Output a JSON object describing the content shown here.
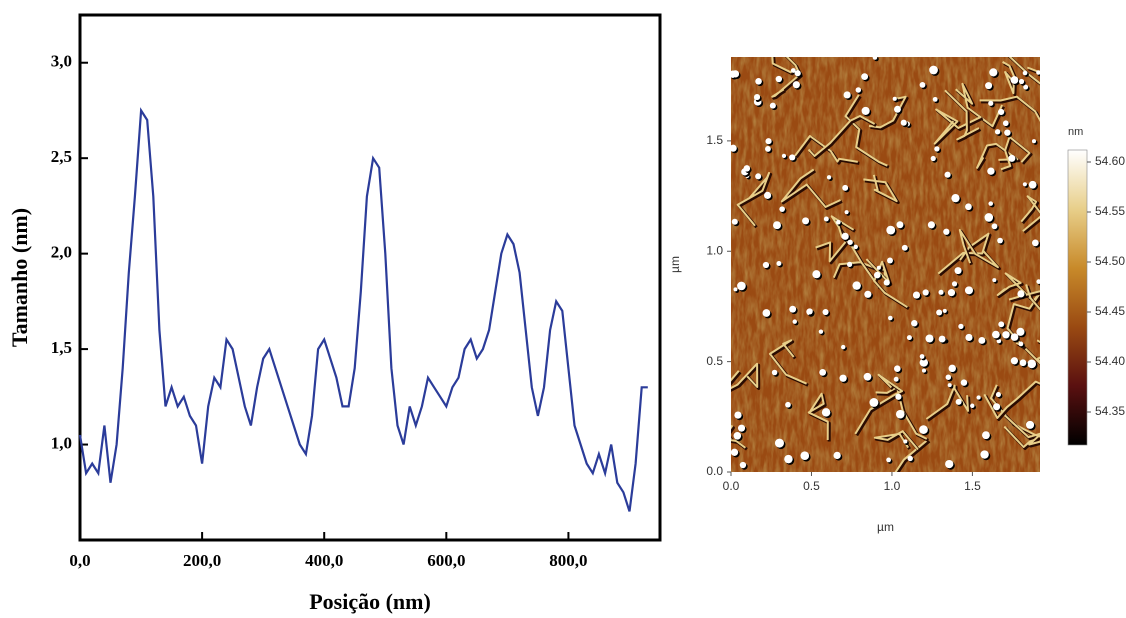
{
  "chart_data": [
    {
      "type": "line",
      "xlabel": "Posição (nm)",
      "ylabel": "Tamanho (nm)",
      "color": "#2b3c9a",
      "x": [
        0,
        10,
        20,
        30,
        40,
        50,
        60,
        70,
        80,
        90,
        100,
        110,
        120,
        130,
        140,
        150,
        160,
        170,
        180,
        190,
        200,
        210,
        220,
        230,
        240,
        250,
        260,
        270,
        280,
        290,
        300,
        310,
        320,
        330,
        340,
        350,
        360,
        370,
        380,
        390,
        400,
        410,
        420,
        430,
        440,
        450,
        460,
        470,
        480,
        490,
        500,
        510,
        520,
        530,
        540,
        550,
        560,
        570,
        580,
        590,
        600,
        610,
        620,
        630,
        640,
        650,
        660,
        670,
        680,
        690,
        700,
        710,
        720,
        730,
        740,
        750,
        760,
        770,
        780,
        790,
        800,
        810,
        820,
        830,
        840,
        850,
        860,
        870,
        880,
        890,
        900,
        910,
        920,
        930
      ],
      "values": [
        1.05,
        0.85,
        0.9,
        0.85,
        1.1,
        0.8,
        1.0,
        1.4,
        1.9,
        2.3,
        2.75,
        2.7,
        2.3,
        1.6,
        1.2,
        1.3,
        1.2,
        1.25,
        1.15,
        1.1,
        0.9,
        1.2,
        1.35,
        1.3,
        1.55,
        1.5,
        1.35,
        1.2,
        1.1,
        1.3,
        1.45,
        1.5,
        1.4,
        1.3,
        1.2,
        1.1,
        1.0,
        0.95,
        1.15,
        1.5,
        1.55,
        1.45,
        1.35,
        1.2,
        1.2,
        1.4,
        1.8,
        2.3,
        2.5,
        2.45,
        2.0,
        1.4,
        1.1,
        1.0,
        1.2,
        1.1,
        1.2,
        1.35,
        1.3,
        1.25,
        1.2,
        1.3,
        1.35,
        1.5,
        1.55,
        1.45,
        1.5,
        1.6,
        1.8,
        2.0,
        2.1,
        2.05,
        1.9,
        1.6,
        1.3,
        1.15,
        1.3,
        1.6,
        1.75,
        1.7,
        1.4,
        1.1,
        1.0,
        0.9,
        0.85,
        0.95,
        0.85,
        1.0,
        0.8,
        0.75,
        0.65,
        0.9,
        1.3,
        1.3
      ],
      "xlim": [
        0,
        950
      ],
      "ylim": [
        0.5,
        3.25
      ],
      "xticks": [
        {
          "value": 0,
          "label": "0,0"
        },
        {
          "value": 200,
          "label": "200,0"
        },
        {
          "value": 400,
          "label": "400,0"
        },
        {
          "value": 600,
          "label": "600,0"
        },
        {
          "value": 800,
          "label": "800,0"
        }
      ],
      "yticks": [
        {
          "value": 1,
          "label": "1,0"
        },
        {
          "value": 1.5,
          "label": "1,5"
        },
        {
          "value": 2,
          "label": "2,0"
        },
        {
          "value": 2.5,
          "label": "2,5"
        },
        {
          "value": 3,
          "label": "3,0"
        }
      ]
    },
    {
      "type": "image",
      "xlabel": "µm",
      "ylabel": "µm",
      "colorbar_label": "nm",
      "xlim": [
        0,
        1.92
      ],
      "ylim": [
        0,
        1.88
      ],
      "xticks": [
        {
          "value": 0,
          "label": "0.0"
        },
        0.5,
        {
          "value": 1,
          "label": "1.0"
        },
        1.5
      ],
      "yticks": [
        {
          "value": 0,
          "label": "0.0"
        },
        0.5,
        {
          "value": 1,
          "label": "1.0"
        },
        1.5
      ],
      "clim": [
        54.317,
        54.612
      ],
      "cticks": [
        {
          "value": 54.6,
          "label": "54.60"
        },
        54.55,
        {
          "value": 54.5,
          "label": "54.50"
        },
        54.45,
        {
          "value": 54.4,
          "label": "54.40"
        },
        54.35
      ],
      "colormap": [
        "#000000",
        "#5a1010",
        "#9a4a12",
        "#c88a2a",
        "#e8cf8a",
        "#ffffff"
      ]
    }
  ]
}
